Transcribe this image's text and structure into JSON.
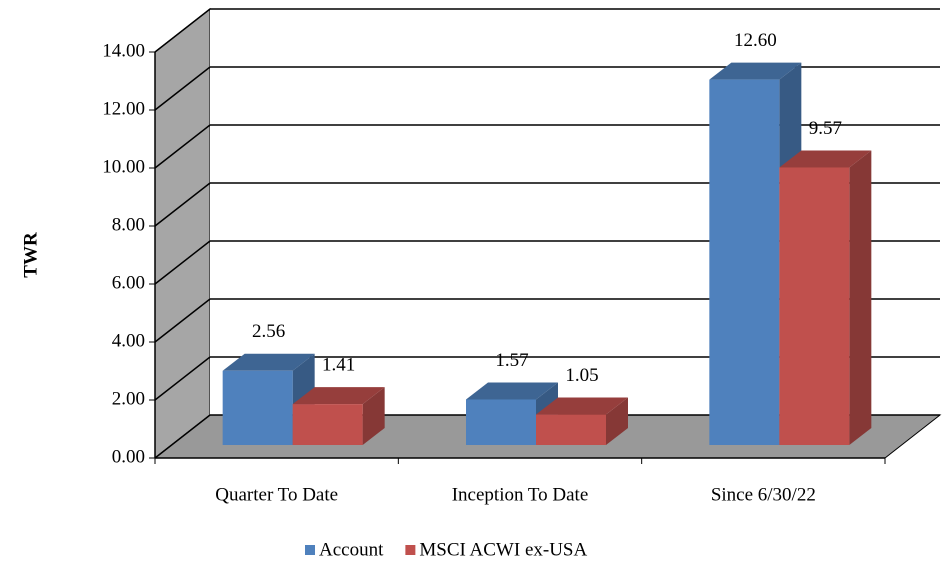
{
  "chart_data": {
    "type": "bar3d",
    "ylabel": "TWR",
    "categories": [
      "Quarter To Date",
      "Inception To Date",
      "Since 6/30/22"
    ],
    "series": [
      {
        "name": "Account",
        "color": "#4f81bd",
        "values": [
          2.56,
          1.57,
          12.6
        ],
        "value_labels": [
          "2.56",
          "1.57",
          "12.60"
        ]
      },
      {
        "name": "MSCI ACWI ex-USA",
        "color": "#c0504d",
        "values": [
          1.41,
          1.05,
          9.57
        ],
        "value_labels": [
          "1.41",
          "1.05",
          "9.57"
        ]
      }
    ],
    "ylim": [
      0,
      14
    ],
    "yticks": [
      {
        "value": 0,
        "label": "0.00"
      },
      {
        "value": 2,
        "label": "2.00"
      },
      {
        "value": 4,
        "label": "4.00"
      },
      {
        "value": 6,
        "label": "6.00"
      },
      {
        "value": 8,
        "label": "8.00"
      },
      {
        "value": 10,
        "label": "10.00"
      },
      {
        "value": 12,
        "label": "12.00"
      },
      {
        "value": 14,
        "label": "14.00"
      }
    ],
    "grid": true,
    "legend": "bottom"
  }
}
